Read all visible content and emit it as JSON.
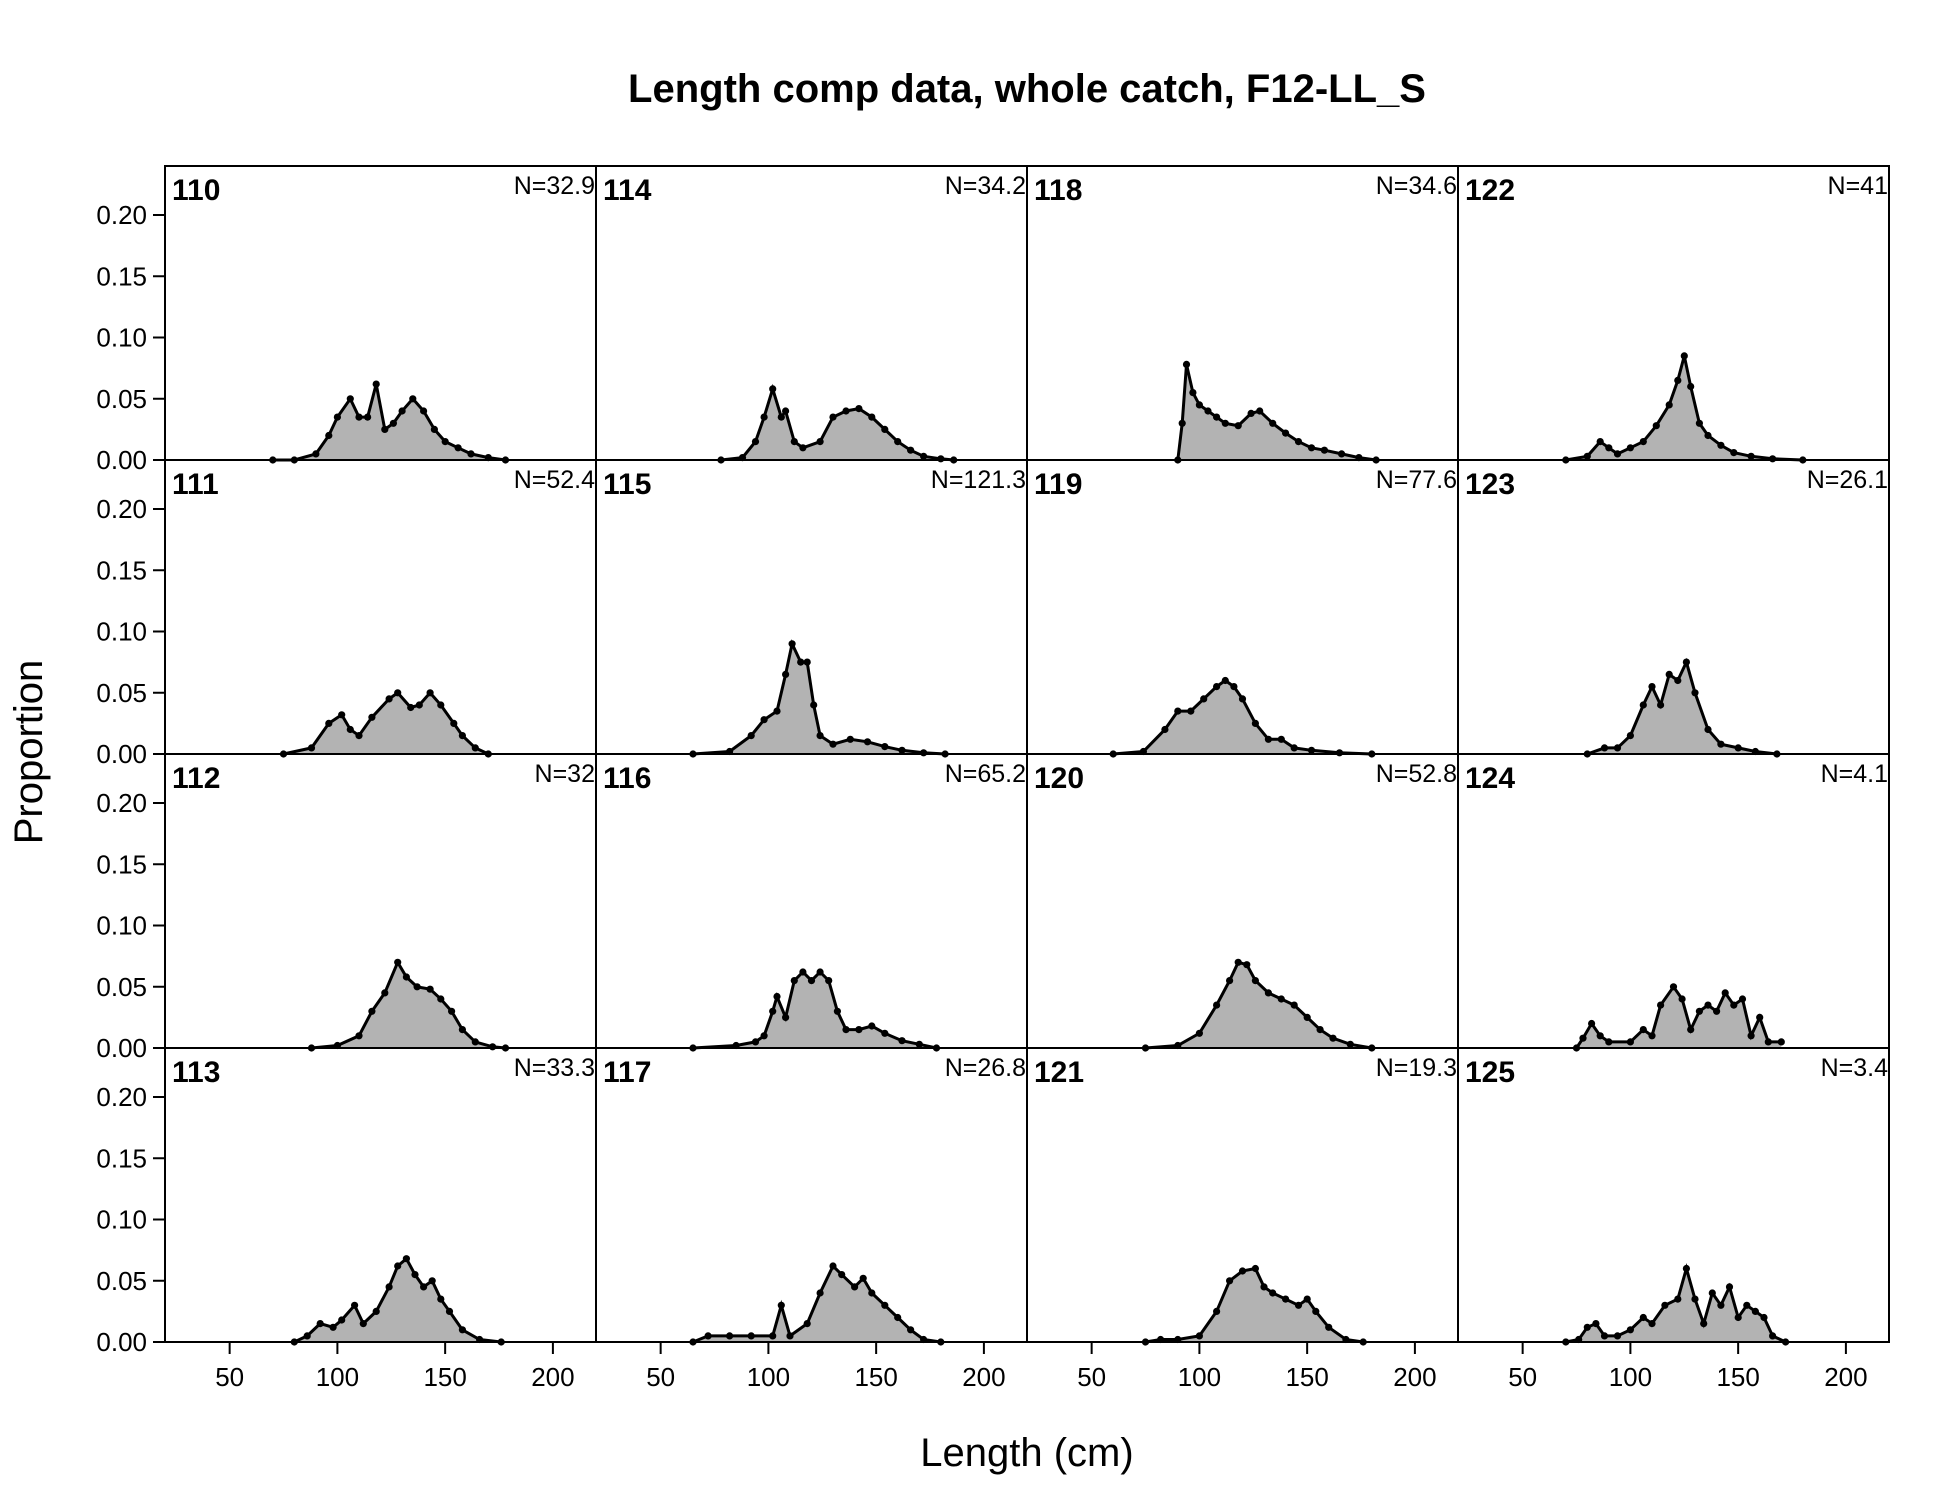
{
  "chart_data": {
    "type": "area",
    "title": "Length comp data, whole catch, F12-LL_S",
    "xlabel": "Length (cm)",
    "ylabel": "Proportion",
    "x_ticks": [
      "50",
      "100",
      "150",
      "200"
    ],
    "y_ticks": [
      "0.00",
      "0.05",
      "0.10",
      "0.15",
      "0.20"
    ],
    "xlim": [
      20,
      220
    ],
    "ylim": [
      0,
      0.24
    ],
    "grid": false,
    "legend": "none",
    "colors": {
      "fill": "#b3b3b3",
      "line": "#000000",
      "frame": "#000000"
    },
    "panels": [
      {
        "id": "110",
        "n_label": "N=32.9",
        "points": [
          [
            70,
            0
          ],
          [
            80,
            0
          ],
          [
            90,
            0.005
          ],
          [
            96,
            0.02
          ],
          [
            100,
            0.035
          ],
          [
            106,
            0.05
          ],
          [
            110,
            0.035
          ],
          [
            114,
            0.035
          ],
          [
            118,
            0.062
          ],
          [
            122,
            0.025
          ],
          [
            126,
            0.03
          ],
          [
            130,
            0.04
          ],
          [
            135,
            0.05
          ],
          [
            140,
            0.04
          ],
          [
            145,
            0.025
          ],
          [
            150,
            0.015
          ],
          [
            156,
            0.01
          ],
          [
            162,
            0.005
          ],
          [
            170,
            0.002
          ],
          [
            178,
            0
          ]
        ]
      },
      {
        "id": "111",
        "n_label": "N=52.4",
        "points": [
          [
            75,
            0
          ],
          [
            88,
            0.005
          ],
          [
            96,
            0.025
          ],
          [
            102,
            0.032
          ],
          [
            106,
            0.02
          ],
          [
            110,
            0.015
          ],
          [
            116,
            0.03
          ],
          [
            124,
            0.045
          ],
          [
            128,
            0.05
          ],
          [
            134,
            0.038
          ],
          [
            138,
            0.04
          ],
          [
            143,
            0.05
          ],
          [
            148,
            0.04
          ],
          [
            154,
            0.025
          ],
          [
            158,
            0.015
          ],
          [
            164,
            0.005
          ],
          [
            170,
            0
          ]
        ]
      },
      {
        "id": "112",
        "n_label": "N=32",
        "points": [
          [
            88,
            0
          ],
          [
            100,
            0.002
          ],
          [
            110,
            0.01
          ],
          [
            116,
            0.03
          ],
          [
            122,
            0.045
          ],
          [
            128,
            0.07
          ],
          [
            132,
            0.058
          ],
          [
            137,
            0.05
          ],
          [
            143,
            0.048
          ],
          [
            148,
            0.04
          ],
          [
            153,
            0.03
          ],
          [
            158,
            0.015
          ],
          [
            164,
            0.005
          ],
          [
            172,
            0.001
          ],
          [
            178,
            0
          ]
        ]
      },
      {
        "id": "113",
        "n_label": "N=33.3",
        "points": [
          [
            80,
            0
          ],
          [
            86,
            0.005
          ],
          [
            92,
            0.015
          ],
          [
            98,
            0.012
          ],
          [
            102,
            0.018
          ],
          [
            108,
            0.03
          ],
          [
            112,
            0.015
          ],
          [
            118,
            0.025
          ],
          [
            124,
            0.045
          ],
          [
            128,
            0.062
          ],
          [
            132,
            0.068
          ],
          [
            136,
            0.055
          ],
          [
            140,
            0.045
          ],
          [
            144,
            0.05
          ],
          [
            148,
            0.035
          ],
          [
            152,
            0.025
          ],
          [
            158,
            0.01
          ],
          [
            166,
            0.002
          ],
          [
            176,
            0
          ]
        ]
      },
      {
        "id": "114",
        "n_label": "N=34.2",
        "points": [
          [
            78,
            0
          ],
          [
            88,
            0.002
          ],
          [
            94,
            0.015
          ],
          [
            98,
            0.035
          ],
          [
            102,
            0.058
          ],
          [
            106,
            0.035
          ],
          [
            108,
            0.04
          ],
          [
            112,
            0.015
          ],
          [
            116,
            0.01
          ],
          [
            124,
            0.015
          ],
          [
            130,
            0.035
          ],
          [
            136,
            0.04
          ],
          [
            142,
            0.042
          ],
          [
            148,
            0.035
          ],
          [
            154,
            0.025
          ],
          [
            160,
            0.015
          ],
          [
            166,
            0.008
          ],
          [
            172,
            0.003
          ],
          [
            180,
            0.001
          ],
          [
            186,
            0
          ]
        ]
      },
      {
        "id": "115",
        "n_label": "N=121.3",
        "points": [
          [
            65,
            0
          ],
          [
            82,
            0.002
          ],
          [
            92,
            0.015
          ],
          [
            98,
            0.028
          ],
          [
            104,
            0.035
          ],
          [
            108,
            0.065
          ],
          [
            111,
            0.09
          ],
          [
            115,
            0.075
          ],
          [
            118,
            0.075
          ],
          [
            121,
            0.04
          ],
          [
            124,
            0.015
          ],
          [
            130,
            0.008
          ],
          [
            138,
            0.012
          ],
          [
            146,
            0.01
          ],
          [
            154,
            0.006
          ],
          [
            162,
            0.003
          ],
          [
            172,
            0.001
          ],
          [
            182,
            0
          ]
        ]
      },
      {
        "id": "116",
        "n_label": "N=65.2",
        "points": [
          [
            65,
            0
          ],
          [
            85,
            0.002
          ],
          [
            94,
            0.005
          ],
          [
            98,
            0.01
          ],
          [
            102,
            0.03
          ],
          [
            104,
            0.042
          ],
          [
            108,
            0.025
          ],
          [
            112,
            0.055
          ],
          [
            116,
            0.062
          ],
          [
            120,
            0.055
          ],
          [
            124,
            0.062
          ],
          [
            128,
            0.055
          ],
          [
            132,
            0.03
          ],
          [
            136,
            0.015
          ],
          [
            142,
            0.015
          ],
          [
            148,
            0.018
          ],
          [
            154,
            0.012
          ],
          [
            162,
            0.006
          ],
          [
            170,
            0.003
          ],
          [
            178,
            0
          ]
        ]
      },
      {
        "id": "117",
        "n_label": "N=26.8",
        "points": [
          [
            65,
            0
          ],
          [
            72,
            0.005
          ],
          [
            82,
            0.005
          ],
          [
            92,
            0.005
          ],
          [
            102,
            0.005
          ],
          [
            106,
            0.03
          ],
          [
            110,
            0.005
          ],
          [
            118,
            0.015
          ],
          [
            124,
            0.04
          ],
          [
            130,
            0.062
          ],
          [
            134,
            0.055
          ],
          [
            140,
            0.045
          ],
          [
            144,
            0.052
          ],
          [
            148,
            0.04
          ],
          [
            154,
            0.03
          ],
          [
            160,
            0.02
          ],
          [
            166,
            0.01
          ],
          [
            172,
            0.002
          ],
          [
            180,
            0
          ]
        ]
      },
      {
        "id": "118",
        "n_label": "N=34.6",
        "points": [
          [
            90,
            0
          ],
          [
            92,
            0.03
          ],
          [
            94,
            0.078
          ],
          [
            97,
            0.055
          ],
          [
            100,
            0.045
          ],
          [
            104,
            0.04
          ],
          [
            108,
            0.035
          ],
          [
            112,
            0.03
          ],
          [
            118,
            0.028
          ],
          [
            124,
            0.038
          ],
          [
            128,
            0.04
          ],
          [
            134,
            0.03
          ],
          [
            140,
            0.022
          ],
          [
            146,
            0.015
          ],
          [
            152,
            0.01
          ],
          [
            158,
            0.008
          ],
          [
            166,
            0.005
          ],
          [
            174,
            0.002
          ],
          [
            182,
            0
          ]
        ]
      },
      {
        "id": "119",
        "n_label": "N=77.6",
        "points": [
          [
            60,
            0
          ],
          [
            74,
            0.002
          ],
          [
            84,
            0.02
          ],
          [
            90,
            0.035
          ],
          [
            96,
            0.035
          ],
          [
            102,
            0.045
          ],
          [
            108,
            0.055
          ],
          [
            112,
            0.06
          ],
          [
            116,
            0.055
          ],
          [
            120,
            0.045
          ],
          [
            126,
            0.025
          ],
          [
            132,
            0.012
          ],
          [
            138,
            0.012
          ],
          [
            144,
            0.005
          ],
          [
            152,
            0.003
          ],
          [
            165,
            0.001
          ],
          [
            180,
            0
          ]
        ]
      },
      {
        "id": "120",
        "n_label": "N=52.8",
        "points": [
          [
            75,
            0
          ],
          [
            90,
            0.002
          ],
          [
            100,
            0.012
          ],
          [
            108,
            0.035
          ],
          [
            114,
            0.055
          ],
          [
            118,
            0.07
          ],
          [
            122,
            0.068
          ],
          [
            126,
            0.055
          ],
          [
            132,
            0.045
          ],
          [
            138,
            0.04
          ],
          [
            144,
            0.035
          ],
          [
            150,
            0.025
          ],
          [
            156,
            0.015
          ],
          [
            162,
            0.008
          ],
          [
            170,
            0.003
          ],
          [
            180,
            0
          ]
        ]
      },
      {
        "id": "121",
        "n_label": "N=19.3",
        "points": [
          [
            75,
            0
          ],
          [
            82,
            0.002
          ],
          [
            90,
            0.002
          ],
          [
            100,
            0.005
          ],
          [
            108,
            0.025
          ],
          [
            114,
            0.05
          ],
          [
            120,
            0.058
          ],
          [
            126,
            0.06
          ],
          [
            130,
            0.045
          ],
          [
            134,
            0.04
          ],
          [
            140,
            0.035
          ],
          [
            146,
            0.03
          ],
          [
            150,
            0.035
          ],
          [
            154,
            0.025
          ],
          [
            160,
            0.012
          ],
          [
            168,
            0.002
          ],
          [
            176,
            0
          ]
        ]
      },
      {
        "id": "122",
        "n_label": "N=41",
        "points": [
          [
            70,
            0
          ],
          [
            80,
            0.003
          ],
          [
            86,
            0.015
          ],
          [
            90,
            0.01
          ],
          [
            94,
            0.005
          ],
          [
            100,
            0.01
          ],
          [
            106,
            0.015
          ],
          [
            112,
            0.028
          ],
          [
            118,
            0.045
          ],
          [
            122,
            0.065
          ],
          [
            125,
            0.085
          ],
          [
            128,
            0.06
          ],
          [
            132,
            0.03
          ],
          [
            136,
            0.02
          ],
          [
            142,
            0.012
          ],
          [
            148,
            0.006
          ],
          [
            156,
            0.003
          ],
          [
            166,
            0.001
          ],
          [
            180,
            0
          ]
        ]
      },
      {
        "id": "123",
        "n_label": "N=26.1",
        "points": [
          [
            80,
            0
          ],
          [
            88,
            0.005
          ],
          [
            94,
            0.005
          ],
          [
            100,
            0.015
          ],
          [
            106,
            0.04
          ],
          [
            110,
            0.055
          ],
          [
            114,
            0.04
          ],
          [
            118,
            0.065
          ],
          [
            122,
            0.06
          ],
          [
            126,
            0.075
          ],
          [
            130,
            0.05
          ],
          [
            136,
            0.02
          ],
          [
            142,
            0.008
          ],
          [
            150,
            0.005
          ],
          [
            158,
            0.002
          ],
          [
            168,
            0
          ]
        ]
      },
      {
        "id": "124",
        "n_label": "N=4.1",
        "points": [
          [
            75,
            0
          ],
          [
            78,
            0.008
          ],
          [
            82,
            0.02
          ],
          [
            86,
            0.01
          ],
          [
            90,
            0.005
          ],
          [
            100,
            0.005
          ],
          [
            106,
            0.015
          ],
          [
            110,
            0.01
          ],
          [
            114,
            0.035
          ],
          [
            120,
            0.05
          ],
          [
            124,
            0.04
          ],
          [
            128,
            0.015
          ],
          [
            132,
            0.03
          ],
          [
            136,
            0.035
          ],
          [
            140,
            0.03
          ],
          [
            144,
            0.045
          ],
          [
            148,
            0.035
          ],
          [
            152,
            0.04
          ],
          [
            156,
            0.01
          ],
          [
            160,
            0.025
          ],
          [
            164,
            0.005
          ],
          [
            170,
            0.005
          ]
        ]
      },
      {
        "id": "125",
        "n_label": "N=3.4",
        "points": [
          [
            70,
            0
          ],
          [
            76,
            0.002
          ],
          [
            80,
            0.012
          ],
          [
            84,
            0.015
          ],
          [
            88,
            0.005
          ],
          [
            94,
            0.005
          ],
          [
            100,
            0.01
          ],
          [
            106,
            0.02
          ],
          [
            110,
            0.015
          ],
          [
            116,
            0.03
          ],
          [
            122,
            0.035
          ],
          [
            126,
            0.06
          ],
          [
            130,
            0.035
          ],
          [
            134,
            0.015
          ],
          [
            138,
            0.04
          ],
          [
            142,
            0.03
          ],
          [
            146,
            0.045
          ],
          [
            150,
            0.02
          ],
          [
            154,
            0.03
          ],
          [
            158,
            0.025
          ],
          [
            162,
            0.02
          ],
          [
            166,
            0.005
          ],
          [
            172,
            0
          ]
        ]
      }
    ]
  }
}
